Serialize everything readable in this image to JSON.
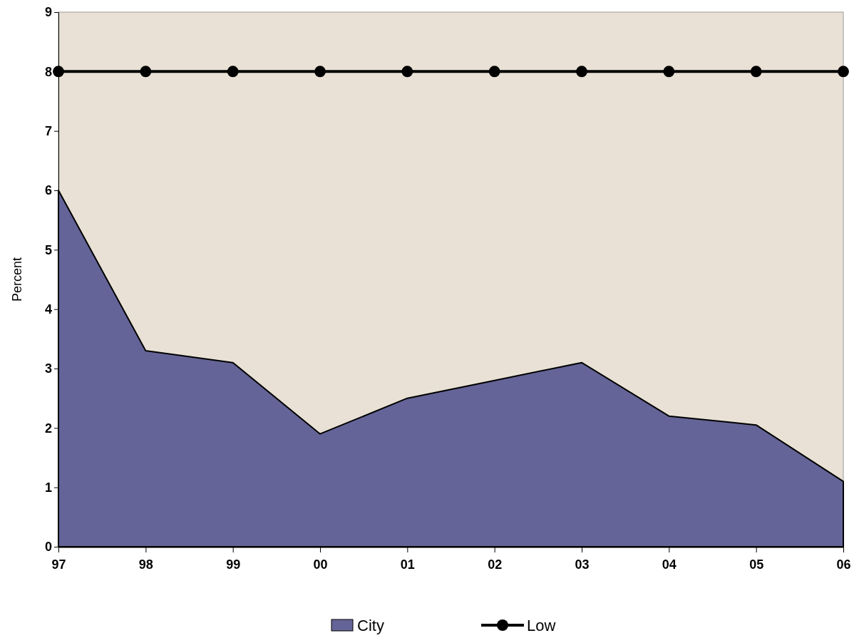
{
  "chart_data": {
    "type": "area",
    "ylabel": "Percent",
    "categories": [
      "97",
      "98",
      "99",
      "00",
      "01",
      "02",
      "03",
      "04",
      "05",
      "06"
    ],
    "series": [
      {
        "name": "City",
        "color": "#646498",
        "values": [
          6.0,
          3.3,
          3.1,
          1.9,
          2.5,
          2.8,
          3.1,
          2.2,
          2.05,
          1.1
        ]
      },
      {
        "name": "Low",
        "type": "line",
        "color": "#000000",
        "marker": "circle",
        "values": [
          8,
          8,
          8,
          8,
          8,
          8,
          8,
          8,
          8,
          8
        ]
      }
    ],
    "ylim": [
      0,
      9
    ],
    "yticks": [
      0,
      1,
      2,
      3,
      4,
      5,
      6,
      7,
      8,
      9
    ],
    "grid": false,
    "legend": "bottom"
  }
}
